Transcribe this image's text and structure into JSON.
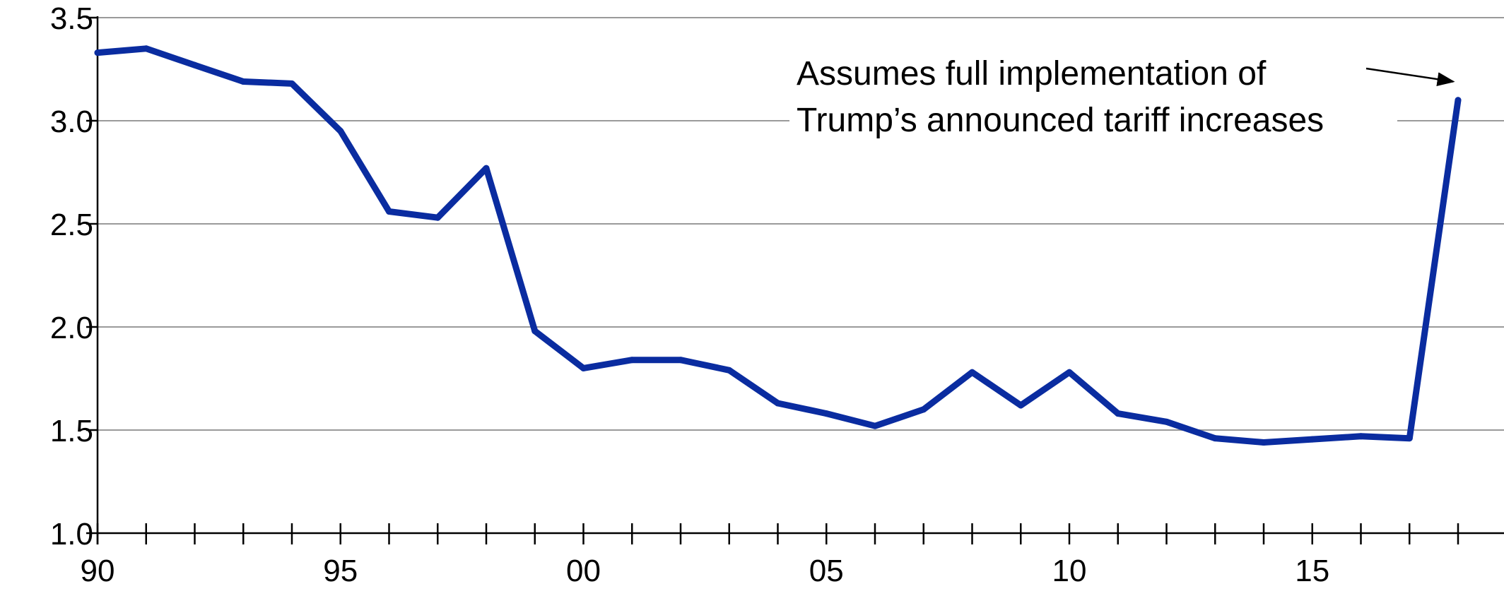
{
  "chart_data": {
    "type": "line",
    "title": "",
    "xlabel": "",
    "ylabel": "",
    "x": [
      1990,
      1991,
      1992,
      1993,
      1994,
      1995,
      1996,
      1997,
      1998,
      1999,
      2000,
      2001,
      2002,
      2003,
      2004,
      2005,
      2006,
      2007,
      2008,
      2009,
      2010,
      2011,
      2012,
      2013,
      2014,
      2015,
      2016,
      2017,
      2018
    ],
    "series": [
      {
        "values": [
          3.33,
          3.35,
          3.27,
          3.19,
          3.18,
          2.95,
          2.56,
          2.53,
          2.77,
          1.98,
          1.8,
          1.84,
          1.84,
          1.79,
          1.63,
          1.58,
          1.52,
          1.6,
          1.78,
          1.62,
          1.78,
          1.58,
          1.54,
          1.46,
          1.44,
          1.455,
          1.47,
          1.46,
          3.1
        ],
        "color": "#0a2ca0"
      }
    ],
    "xlim": [
      1990,
      2020
    ],
    "ylim": [
      1.0,
      3.5
    ],
    "yticks": [
      1.0,
      1.5,
      2.0,
      2.5,
      3.0,
      3.5
    ],
    "yticklabels": [
      "1.0",
      "1.5",
      "2.0",
      "2.5",
      "3.0",
      "3.5"
    ],
    "xtick_years": [
      1990,
      1991,
      1992,
      1993,
      1994,
      1995,
      1996,
      1997,
      1998,
      1999,
      2000,
      2001,
      2002,
      2003,
      2004,
      2005,
      2006,
      2007,
      2008,
      2009,
      2010,
      2011,
      2012,
      2013,
      2014,
      2015,
      2016,
      2017,
      2018
    ],
    "xlabel_years": [
      1990,
      1995,
      2000,
      2005,
      2010,
      2015
    ],
    "xticklabels": [
      "90",
      "95",
      "00",
      "05",
      "10",
      "15"
    ],
    "grid": true,
    "annotations": [
      {
        "lines": [
          "Assumes full implementation of",
          "Trump’s announced tariff increases"
        ],
        "arrow_target": {
          "x": 2017.9,
          "y": 3.19
        }
      }
    ]
  }
}
